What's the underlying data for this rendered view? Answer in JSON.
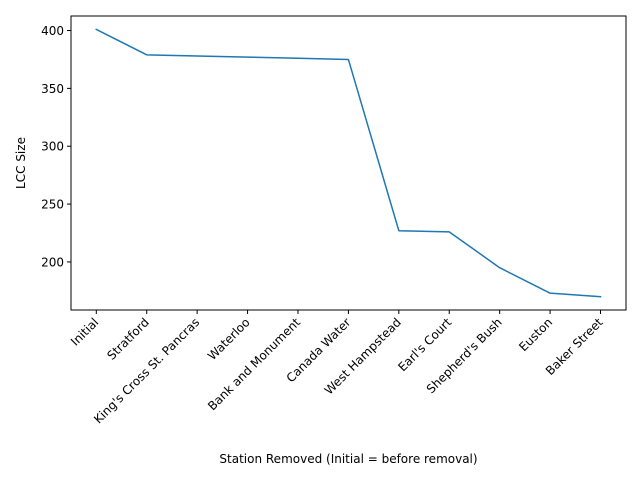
{
  "chart_data": {
    "type": "line",
    "title": "",
    "xlabel": "Station Removed (Initial = before removal)",
    "ylabel": "LCC Size",
    "categories": [
      "Initial",
      "Stratford",
      "King's Cross St. Pancras",
      "Waterloo",
      "Bank and Monument",
      "Canada Water",
      "West Hampstead",
      "Earl's Court",
      "Shepherd's Bush",
      "Euston",
      "Baker Street"
    ],
    "series": [
      {
        "values": [
          401,
          379,
          378,
          377,
          376,
          375,
          227,
          226,
          195,
          173,
          170
        ],
        "color": "#1f77b4"
      }
    ],
    "yticks": [
      200,
      250,
      300,
      350,
      400
    ],
    "ylim": [
      158.45,
      412.55
    ],
    "grid": false,
    "legend": "none"
  }
}
